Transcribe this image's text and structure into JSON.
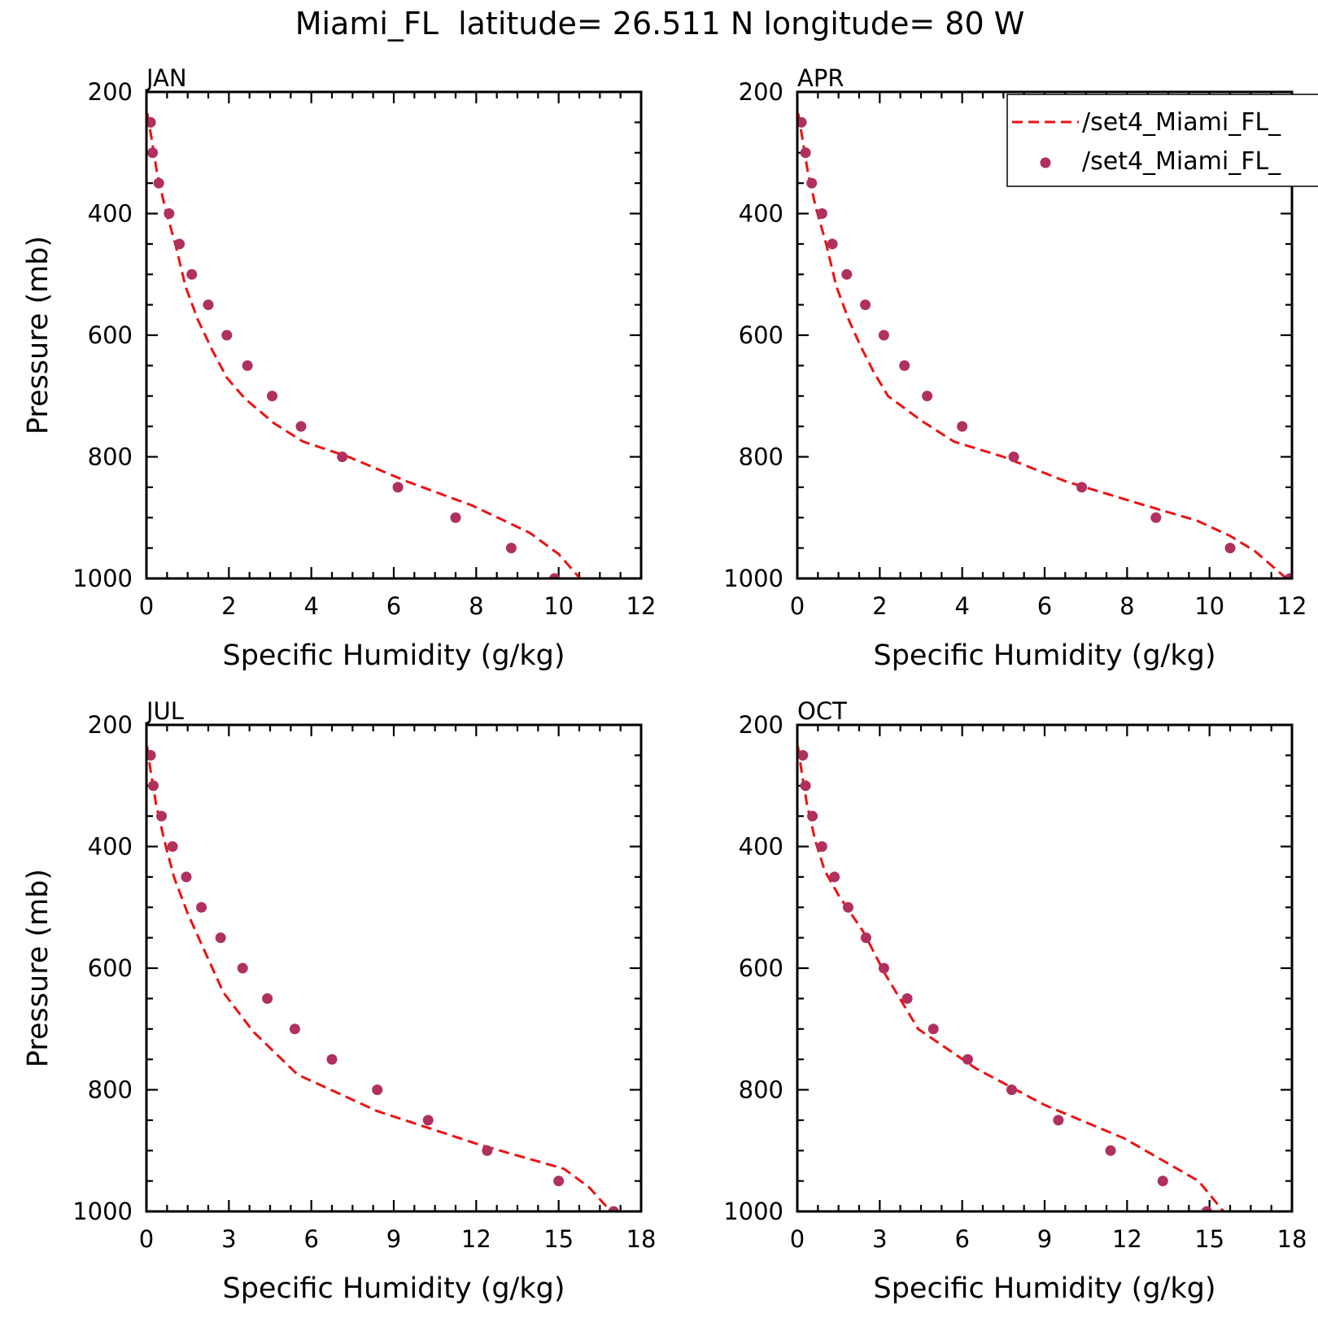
{
  "title": "Miami_FL  latitude= 26.511 N longitude= 80 W",
  "legend": {
    "model_label": "/set4_Miami_FL_",
    "obs_label": "/set4_Miami_FL_"
  },
  "colors": {
    "model": "#ee1111",
    "obs": "#b03060",
    "axes": "#000000"
  },
  "chart_data": [
    {
      "type": "line",
      "panel": "JAN",
      "xlabel": "Specific Humidity (g/kg)",
      "ylabel": "Pressure (mb)",
      "xlim": [
        0,
        12
      ],
      "ylim": [
        200,
        1000
      ],
      "y_inverted": true,
      "xticks": [
        0,
        2,
        4,
        6,
        8,
        10,
        12
      ],
      "yticks": [
        200,
        400,
        600,
        800,
        1000
      ],
      "model": {
        "x": [
          0.02,
          0.12,
          0.25,
          0.45,
          0.7,
          0.95,
          1.25,
          1.6,
          1.95,
          2.4,
          3.1,
          3.8,
          4.9,
          6.3,
          7.9,
          9.3,
          10.0,
          10.65
        ],
        "y": [
          235,
          275,
          330,
          390,
          450,
          520,
          575,
          625,
          670,
          705,
          745,
          775,
          800,
          840,
          880,
          925,
          960,
          1010
        ]
      },
      "obs": {
        "x": [
          0.1,
          0.15,
          0.3,
          0.55,
          0.8,
          1.1,
          1.5,
          1.95,
          2.45,
          3.05,
          3.75,
          4.75,
          6.1,
          7.5,
          8.85,
          9.9
        ],
        "y": [
          250,
          300,
          350,
          400,
          450,
          500,
          550,
          600,
          650,
          700,
          750,
          800,
          850,
          900,
          950,
          1000
        ]
      }
    },
    {
      "type": "line",
      "panel": "APR",
      "xlabel": "Specific Humidity (g/kg)",
      "ylabel": "",
      "xlim": [
        0,
        12
      ],
      "ylim": [
        200,
        1000
      ],
      "y_inverted": true,
      "xticks": [
        0,
        2,
        4,
        6,
        8,
        10,
        12
      ],
      "yticks": [
        200,
        400,
        600,
        800,
        1000
      ],
      "model": {
        "x": [
          0.02,
          0.12,
          0.25,
          0.45,
          0.7,
          0.95,
          1.25,
          1.55,
          1.85,
          2.2,
          3.0,
          3.8,
          5.0,
          6.5,
          8.2,
          9.7,
          10.5,
          11.1,
          11.95
        ],
        "y": [
          235,
          275,
          330,
          390,
          450,
          520,
          575,
          620,
          660,
          700,
          740,
          775,
          800,
          840,
          875,
          905,
          930,
          955,
          1005
        ]
      },
      "obs": {
        "x": [
          0.1,
          0.2,
          0.35,
          0.6,
          0.85,
          1.2,
          1.65,
          2.1,
          2.6,
          3.15,
          4.0,
          5.25,
          6.9,
          8.7,
          10.5,
          11.95
        ],
        "y": [
          250,
          300,
          350,
          400,
          450,
          500,
          550,
          600,
          650,
          700,
          750,
          800,
          850,
          900,
          950,
          1000
        ]
      }
    },
    {
      "type": "line",
      "panel": "JUL",
      "xlabel": "Specific Humidity (g/kg)",
      "ylabel": "Pressure (mb)",
      "xlim": [
        0,
        18
      ],
      "ylim": [
        200,
        1000
      ],
      "y_inverted": true,
      "xticks": [
        0,
        3,
        6,
        9,
        12,
        15,
        18
      ],
      "yticks": [
        200,
        400,
        600,
        800,
        1000
      ],
      "model": {
        "x": [
          0.02,
          0.15,
          0.35,
          0.65,
          1.0,
          1.5,
          2.1,
          2.8,
          3.9,
          5.5,
          8.4,
          12.1,
          15.2,
          16.1,
          17.0
        ],
        "y": [
          235,
          275,
          330,
          390,
          450,
          510,
          570,
          640,
          705,
          775,
          835,
          890,
          930,
          960,
          1005
        ]
      },
      "obs": {
        "x": [
          0.15,
          0.25,
          0.55,
          0.95,
          1.45,
          2.0,
          2.7,
          3.5,
          4.4,
          5.4,
          6.75,
          8.4,
          10.25,
          12.4,
          15.0,
          17.0
        ],
        "y": [
          250,
          300,
          350,
          400,
          450,
          500,
          550,
          600,
          650,
          700,
          750,
          800,
          850,
          900,
          950,
          1000
        ]
      }
    },
    {
      "type": "line",
      "panel": "OCT",
      "xlabel": "Specific Humidity (g/kg)",
      "ylabel": "",
      "xlim": [
        0,
        18
      ],
      "ylim": [
        200,
        1000
      ],
      "y_inverted": true,
      "xticks": [
        0,
        3,
        6,
        9,
        12,
        15,
        18
      ],
      "yticks": [
        200,
        400,
        600,
        800,
        1000
      ],
      "model": {
        "x": [
          0.02,
          0.15,
          0.35,
          0.65,
          1.0,
          1.5,
          2.4,
          3.2,
          4.4,
          6.5,
          9.0,
          11.9,
          14.6,
          15.6
        ],
        "y": [
          235,
          275,
          330,
          390,
          440,
          480,
          540,
          610,
          700,
          765,
          825,
          880,
          950,
          1005
        ]
      },
      "obs": {
        "x": [
          0.2,
          0.3,
          0.55,
          0.9,
          1.35,
          1.85,
          2.5,
          3.15,
          4.0,
          4.95,
          6.2,
          7.8,
          9.5,
          11.4,
          13.3,
          14.9
        ],
        "y": [
          250,
          300,
          350,
          400,
          450,
          500,
          550,
          600,
          650,
          700,
          750,
          800,
          850,
          900,
          950,
          1000
        ]
      }
    }
  ]
}
